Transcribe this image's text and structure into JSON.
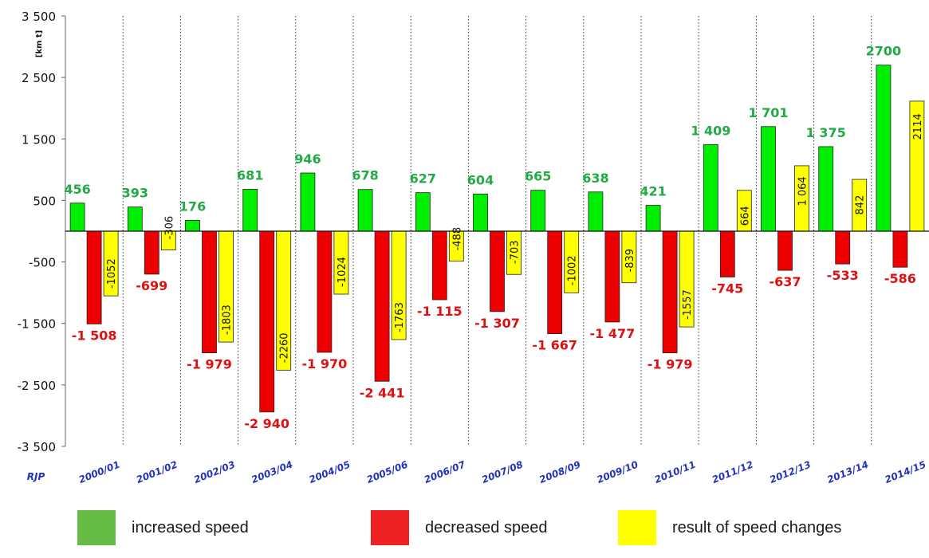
{
  "chart_data": {
    "type": "bar",
    "ylabel": "[km t]",
    "xlabel": "RJP",
    "ylim": [
      -3500,
      3500
    ],
    "yticks": [
      {
        "value": 3500,
        "label": "3 500"
      },
      {
        "value": 2500,
        "label": "2 500"
      },
      {
        "value": 1500,
        "label": "1 500"
      },
      {
        "value": 500,
        "label": "500"
      },
      {
        "value": -500,
        "label": "-500"
      },
      {
        "value": -1500,
        "label": "-1 500"
      },
      {
        "value": -2500,
        "label": "-2 500"
      },
      {
        "value": -3500,
        "label": "-3 500"
      }
    ],
    "categories": [
      "2000/01",
      "2001/02",
      "2002/03",
      "2003/04",
      "2004/05",
      "2005/06",
      "2006/07",
      "2007/08",
      "2008/09",
      "2009/10",
      "2010/11",
      "2011/12",
      "2012/13",
      "2013/14",
      "2014/15"
    ],
    "series": [
      {
        "name": "increased speed",
        "color": "#00ee00",
        "values": [
          456,
          393,
          176,
          681,
          946,
          678,
          627,
          604,
          665,
          638,
          421,
          1409,
          1701,
          1375,
          2700
        ],
        "labels": [
          "456",
          "393",
          "176",
          "681",
          "946",
          "678",
          "627",
          "604",
          "665",
          "638",
          "421",
          "1 409",
          "1 701",
          "1 375",
          "2700"
        ]
      },
      {
        "name": "decreased speed",
        "color": "#ee0000",
        "values": [
          -1508,
          -699,
          -1979,
          -2940,
          -1970,
          -2441,
          -1115,
          -1307,
          -1667,
          -1477,
          -1979,
          -745,
          -637,
          -533,
          -586
        ],
        "labels": [
          "-1 508",
          "-699",
          "-1 979",
          "-2 940",
          "-1 970",
          "-2 441",
          "-1 115",
          "-1 307",
          "-1 667",
          "-1 477",
          "-1 979",
          "-745",
          "-637",
          "-533",
          "-586"
        ]
      },
      {
        "name": "result of speed changes",
        "color": "#ffff00",
        "values": [
          -1052,
          -306,
          -1803,
          -2260,
          -1024,
          -1763,
          -488,
          -703,
          -1002,
          -839,
          -1557,
          664,
          1064,
          842,
          2114
        ],
        "labels": [
          "-1052",
          "-306",
          "-1803",
          "-2260",
          "-1024",
          "-1763",
          "-488",
          "-703",
          "-1002",
          "-839",
          "-1557",
          "664",
          "1 064",
          "842",
          "2114"
        ]
      }
    ],
    "grid": "vertical dotted separators",
    "legend_position": "bottom"
  },
  "legend": {
    "items": [
      {
        "label": "increased speed",
        "color": "#66bb44"
      },
      {
        "label": "decreased speed",
        "color": "#ee2222"
      },
      {
        "label": "result of speed changes",
        "color": "#ffff00"
      }
    ]
  },
  "colors": {
    "green_label": "#22aa44",
    "red_label": "#dd1111",
    "axis_label": "#2233bb"
  }
}
